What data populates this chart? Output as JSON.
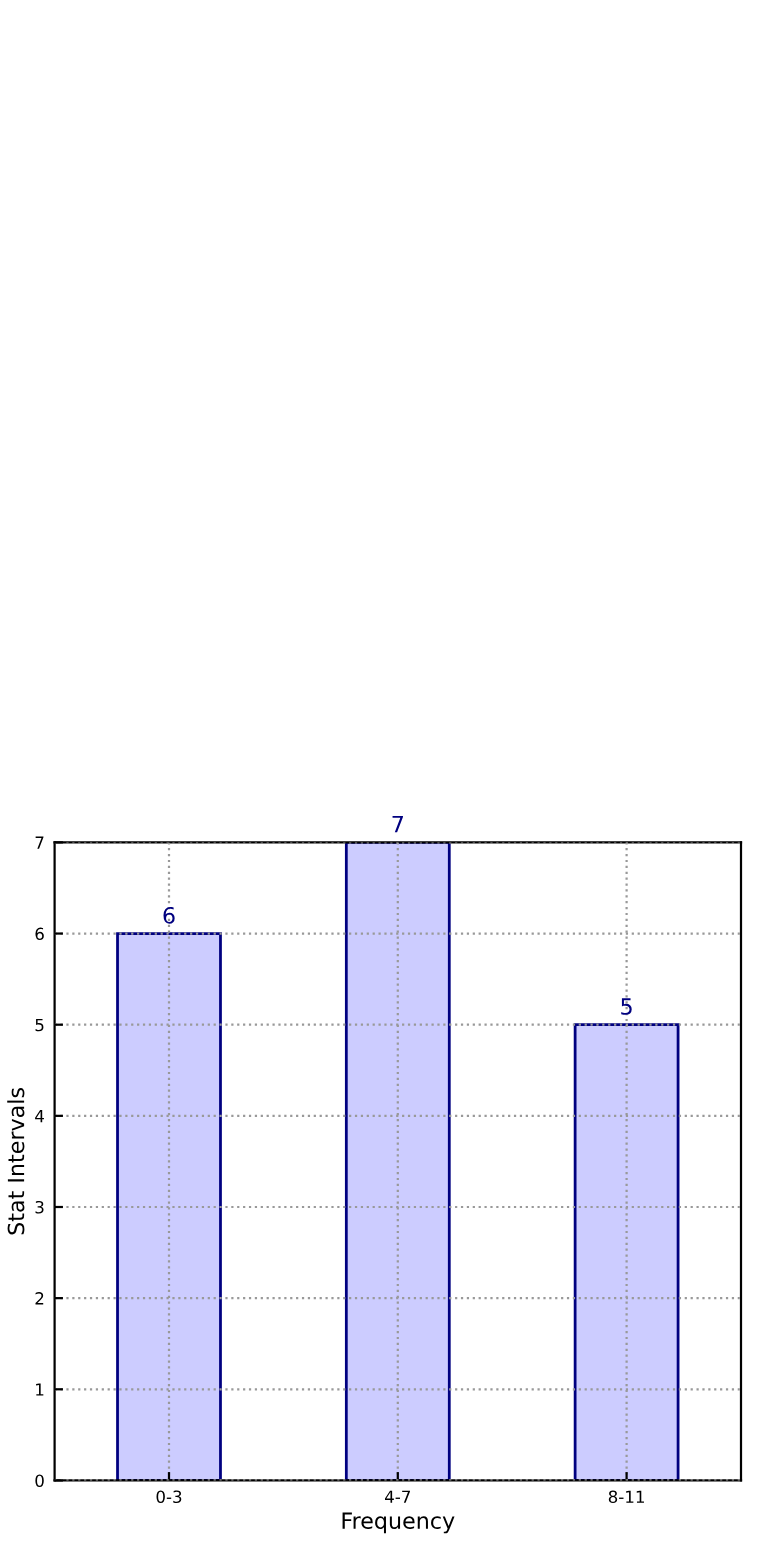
{
  "chart_data": {
    "type": "bar",
    "xlabel": "Frequency",
    "ylabel": "Stat Intervals",
    "categories": [
      "0-3",
      "4-7",
      "8-11"
    ],
    "series": [
      {
        "color": "#ccccff",
        "values": [
          6,
          7,
          5
        ]
      }
    ],
    "ylim": [
      0,
      7
    ],
    "yticks": [
      0,
      1,
      2,
      3,
      4,
      5,
      6,
      7
    ],
    "grid": true,
    "data_labels": true
  }
}
